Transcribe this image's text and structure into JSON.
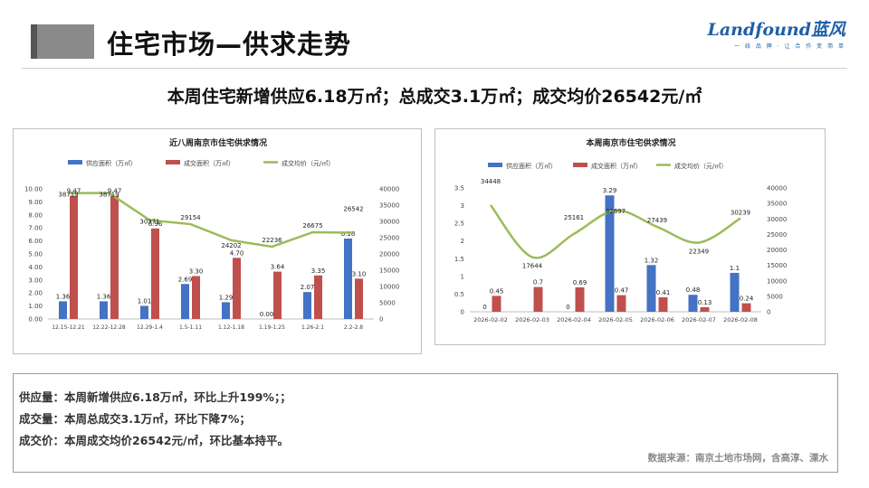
{
  "header": {
    "title": "住宅市场—供求走势",
    "logo_text": "Landfound蓝风",
    "logo_tagline": "一 线 品 牌 · 让 合 作 变 简 单"
  },
  "headline": "本周住宅新增供应6.18万㎡；总成交3.1万㎡；成交均价26542元/㎡",
  "colors": {
    "supply": "#4472c4",
    "deal": "#c0504d",
    "price": "#9bbb59"
  },
  "chart_data": [
    {
      "type": "bar",
      "title": "近八周南京市住宅供求情况",
      "legend": [
        "供应面积（万㎡）",
        "成交面积（万㎡）",
        "成交均价（元/㎡）"
      ],
      "categories": [
        "12.15-12.21",
        "12.22-12.28",
        "12.29-1.4",
        "1.5-1.11",
        "1.12-1.18",
        "1.19-1.25",
        "1.26-2.1",
        "2.2-2.8"
      ],
      "series": [
        {
          "name": "供应面积（万㎡）",
          "axis": "left",
          "kind": "bar",
          "values": [
            1.36,
            1.36,
            1.01,
            2.69,
            1.29,
            0.0,
            2.07,
            6.18
          ],
          "labels": [
            "1.36",
            "1.36",
            "1.01",
            "2.69",
            "1.29",
            "0.00",
            "2.07",
            "6.18"
          ]
        },
        {
          "name": "成交面积（万㎡）",
          "axis": "left",
          "kind": "bar",
          "values": [
            9.47,
            9.47,
            6.96,
            3.3,
            4.7,
            3.64,
            3.35,
            3.1
          ],
          "labels": [
            "9.47",
            "9.47",
            "6.96",
            "3.30",
            "4.70",
            "3.64",
            "3.35",
            "3.10"
          ]
        },
        {
          "name": "成交均价（元/㎡）",
          "axis": "right",
          "kind": "line",
          "values": [
            38719,
            38719,
            30371,
            29154,
            24202,
            22236,
            26675,
            26542
          ],
          "labels": [
            "38719",
            "38719",
            "30371",
            "29154",
            "24202",
            "22236",
            "26675",
            "26542"
          ]
        }
      ],
      "y_left": {
        "min": 0,
        "max": 10,
        "ticks": [
          "0.00",
          "1.00",
          "2.00",
          "3.00",
          "4.00",
          "5.00",
          "6.00",
          "7.00",
          "8.00",
          "9.00",
          "10.00"
        ]
      },
      "y_right": {
        "min": 0,
        "max": 40000,
        "ticks": [
          "0",
          "5000",
          "10000",
          "15000",
          "20000",
          "25000",
          "30000",
          "35000",
          "40000"
        ]
      }
    },
    {
      "type": "bar",
      "title": "本周南京市住宅供求情况",
      "legend": [
        "供应面积（万㎡）",
        "成交面积（万㎡）",
        "成交均价（元/㎡）"
      ],
      "categories": [
        "2026-02-02",
        "2026-02-03",
        "2026-02-04",
        "2026-02-05",
        "2026-02-06",
        "2026-02-07",
        "2026-02-08"
      ],
      "series": [
        {
          "name": "供应面积（万㎡）",
          "axis": "left",
          "kind": "bar",
          "values": [
            0,
            0,
            0,
            3.29,
            1.32,
            0.48,
            1.1
          ],
          "labels": [
            "0",
            "",
            "0",
            "3.29",
            "1.32",
            "0.48",
            "1.1"
          ]
        },
        {
          "name": "成交面积（万㎡）",
          "axis": "left",
          "kind": "bar",
          "values": [
            0.45,
            0.7,
            0.69,
            0.47,
            0.41,
            0.13,
            0.24
          ],
          "labels": [
            "0.45",
            "0.7",
            "0.69",
            "0.47",
            "0.41",
            "0.13",
            "0.24"
          ]
        },
        {
          "name": "成交均价（元/㎡）",
          "axis": "right",
          "kind": "line",
          "smooth": true,
          "values": [
            34448,
            17644,
            25161,
            32697,
            27439,
            22349,
            30239
          ],
          "labels": [
            "34448",
            "17644",
            "25161",
            "32697",
            "27439",
            "22349",
            "30239"
          ]
        }
      ],
      "y_left": {
        "min": 0,
        "max": 3.5,
        "ticks": [
          "0",
          "0.5",
          "1",
          "1.5",
          "2",
          "2.5",
          "3",
          "3.5"
        ]
      },
      "y_right": {
        "min": 0,
        "max": 40000,
        "ticks": [
          "0",
          "5000",
          "10000",
          "15000",
          "20000",
          "25000",
          "30000",
          "35000",
          "40000"
        ]
      }
    }
  ],
  "summary": {
    "supply": "供应量：本周新增供应6.18万㎡，环比上升199%；；",
    "deal": "成交量：本周总成交3.1万㎡，环比下降7%；",
    "price": "成交价：本周成交均价26542元/㎡，环比基本持平。",
    "source": "数据来源：南京土地市场网，含高淳、溧水"
  }
}
